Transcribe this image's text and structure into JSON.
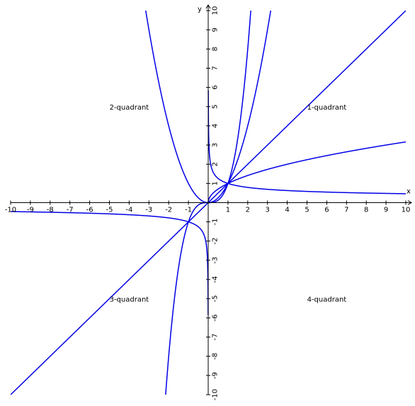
{
  "chart_data": {
    "type": "line",
    "title": "",
    "xlabel": "x",
    "ylabel": "y",
    "xlim": [
      -10,
      10
    ],
    "ylim": [
      -10,
      10
    ],
    "grid": false,
    "line_color": "#0000e6",
    "axis_color": "#000000",
    "x_ticks": [
      -10,
      -9,
      -8,
      -7,
      -6,
      -5,
      -4,
      -3,
      -2,
      -1,
      1,
      2,
      3,
      4,
      5,
      6,
      7,
      8,
      9,
      10
    ],
    "y_ticks": [
      -10,
      -9,
      -8,
      -7,
      -6,
      -5,
      -4,
      -3,
      -2,
      -1,
      1,
      2,
      3,
      4,
      5,
      6,
      7,
      8,
      9,
      10
    ],
    "series": [
      {
        "name": "y = x",
        "exponent": 1,
        "domain": "all"
      },
      {
        "name": "y = x^2",
        "exponent": 2,
        "domain": "all"
      },
      {
        "name": "y = x^3",
        "exponent": 3,
        "domain": "all"
      },
      {
        "name": "y = x^(1/2)",
        "exponent": 0.5,
        "domain": "x>=0"
      },
      {
        "name": "y = x^(-1/3)",
        "exponent": -0.333333,
        "domain": "odd-root"
      }
    ],
    "annotations": [
      {
        "text": "1-quadrant",
        "x": 6,
        "y": 5
      },
      {
        "text": "2-quadrant",
        "x": -4,
        "y": 5
      },
      {
        "text": "3-quadrant",
        "x": -4,
        "y": -5
      },
      {
        "text": "4-quadrant",
        "x": 6,
        "y": -5
      }
    ]
  }
}
